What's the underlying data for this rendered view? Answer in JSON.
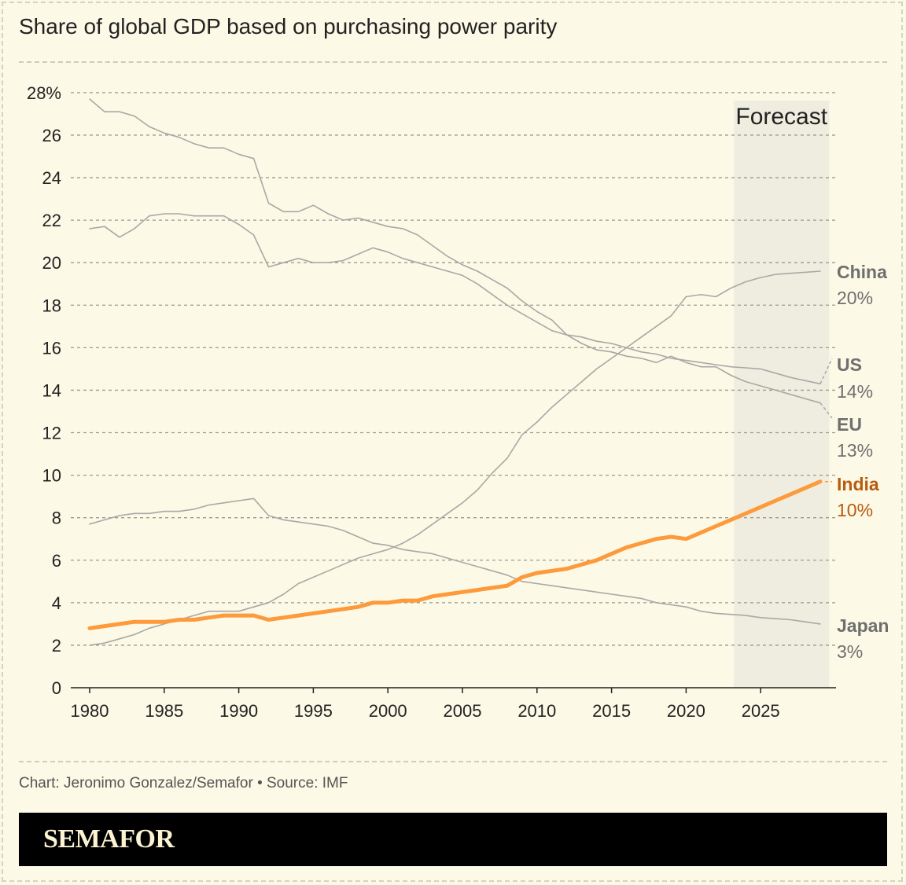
{
  "colors": {
    "background": "#fcf9e6",
    "gray_line": "#a9a8a6",
    "india": "#fd9a3b",
    "india_label": "#b85c0f",
    "gray_label": "#6f6f6f",
    "forecast_band": "#efeddf"
  },
  "chart_data": {
    "type": "line",
    "title": "Share of global GDP based on purchasing power parity",
    "xlabel": "",
    "ylabel": "",
    "xlim": [
      1980,
      2029
    ],
    "ylim": [
      0,
      28
    ],
    "x_ticks": [
      "1980",
      "1985",
      "1990",
      "1995",
      "2000",
      "2005",
      "2010",
      "2015",
      "2020",
      "2025"
    ],
    "y_ticks": [
      "0",
      "2",
      "4",
      "6",
      "8",
      "10",
      "12",
      "14",
      "16",
      "18",
      "20",
      "22",
      "24",
      "26",
      "28%"
    ],
    "grid": "horizontal dashed",
    "annotation": {
      "label": "Forecast",
      "range": [
        2023.2,
        2029.6
      ]
    },
    "x": [
      1980,
      1981,
      1982,
      1983,
      1984,
      1985,
      1986,
      1987,
      1988,
      1989,
      1990,
      1991,
      1992,
      1993,
      1994,
      1995,
      1996,
      1997,
      1998,
      1999,
      2000,
      2001,
      2002,
      2003,
      2004,
      2005,
      2006,
      2007,
      2008,
      2009,
      2010,
      2011,
      2012,
      2013,
      2014,
      2015,
      2016,
      2017,
      2018,
      2019,
      2020,
      2021,
      2022,
      2023,
      2024,
      2025,
      2026,
      2027,
      2028,
      2029
    ],
    "series": [
      {
        "name": "China",
        "value_label": "20%",
        "highlight": false,
        "values": [
          2.0,
          2.1,
          2.3,
          2.5,
          2.8,
          3.0,
          3.2,
          3.4,
          3.6,
          3.6,
          3.6,
          3.8,
          4.0,
          4.4,
          4.9,
          5.2,
          5.5,
          5.8,
          6.1,
          6.3,
          6.5,
          6.8,
          7.2,
          7.7,
          8.2,
          8.7,
          9.3,
          10.1,
          10.8,
          11.9,
          12.5,
          13.2,
          13.8,
          14.4,
          15.0,
          15.5,
          16.0,
          16.5,
          17.0,
          17.5,
          18.4,
          18.5,
          18.4,
          18.8,
          19.1,
          19.3,
          19.45,
          19.5,
          19.55,
          19.6
        ]
      },
      {
        "name": "US",
        "value_label": "14%",
        "highlight": false,
        "values": [
          21.6,
          21.7,
          21.2,
          21.6,
          22.2,
          22.3,
          22.3,
          22.2,
          22.2,
          22.2,
          21.8,
          21.3,
          19.8,
          20.0,
          20.2,
          20.0,
          20.0,
          20.1,
          20.4,
          20.7,
          20.5,
          20.2,
          20.0,
          19.8,
          19.6,
          19.4,
          19.0,
          18.5,
          18.0,
          17.6,
          17.2,
          16.8,
          16.6,
          16.5,
          16.3,
          16.2,
          16.0,
          15.8,
          15.7,
          15.5,
          15.4,
          15.3,
          15.2,
          15.1,
          15.05,
          15.0,
          14.8,
          14.6,
          14.45,
          14.3
        ]
      },
      {
        "name": "EU",
        "value_label": "13%",
        "highlight": false,
        "values": [
          27.7,
          27.1,
          27.1,
          26.9,
          26.4,
          26.1,
          25.9,
          25.6,
          25.4,
          25.4,
          25.1,
          24.9,
          22.8,
          22.4,
          22.4,
          22.7,
          22.3,
          22.0,
          22.1,
          21.9,
          21.7,
          21.6,
          21.3,
          20.8,
          20.3,
          19.9,
          19.6,
          19.2,
          18.8,
          18.2,
          17.7,
          17.3,
          16.6,
          16.2,
          15.9,
          15.8,
          15.6,
          15.5,
          15.3,
          15.6,
          15.3,
          15.1,
          15.1,
          14.7,
          14.4,
          14.2,
          14.0,
          13.8,
          13.6,
          13.4
        ]
      },
      {
        "name": "India",
        "value_label": "10%",
        "highlight": true,
        "values": [
          2.8,
          2.9,
          3.0,
          3.1,
          3.1,
          3.1,
          3.2,
          3.2,
          3.3,
          3.4,
          3.4,
          3.4,
          3.2,
          3.3,
          3.4,
          3.5,
          3.6,
          3.7,
          3.8,
          4.0,
          4.0,
          4.1,
          4.1,
          4.3,
          4.4,
          4.5,
          4.6,
          4.7,
          4.8,
          5.2,
          5.4,
          5.5,
          5.6,
          5.8,
          6.0,
          6.3,
          6.6,
          6.8,
          7.0,
          7.1,
          7.0,
          7.3,
          7.6,
          7.9,
          8.2,
          8.5,
          8.8,
          9.1,
          9.4,
          9.7
        ]
      },
      {
        "name": "Japan",
        "value_label": "3%",
        "highlight": false,
        "values": [
          7.7,
          7.9,
          8.1,
          8.2,
          8.2,
          8.3,
          8.3,
          8.4,
          8.6,
          8.7,
          8.8,
          8.9,
          8.1,
          7.9,
          7.8,
          7.7,
          7.6,
          7.4,
          7.1,
          6.8,
          6.7,
          6.5,
          6.4,
          6.3,
          6.1,
          5.9,
          5.7,
          5.5,
          5.3,
          5.0,
          4.9,
          4.8,
          4.7,
          4.6,
          4.5,
          4.4,
          4.3,
          4.2,
          4.0,
          3.9,
          3.8,
          3.6,
          3.5,
          3.45,
          3.4,
          3.3,
          3.25,
          3.2,
          3.1,
          3.0
        ]
      }
    ]
  },
  "footer": {
    "credit": "Chart: Jeronimo Gonzalez/Semafor • Source: IMF",
    "brand": "SEMAFOR"
  }
}
